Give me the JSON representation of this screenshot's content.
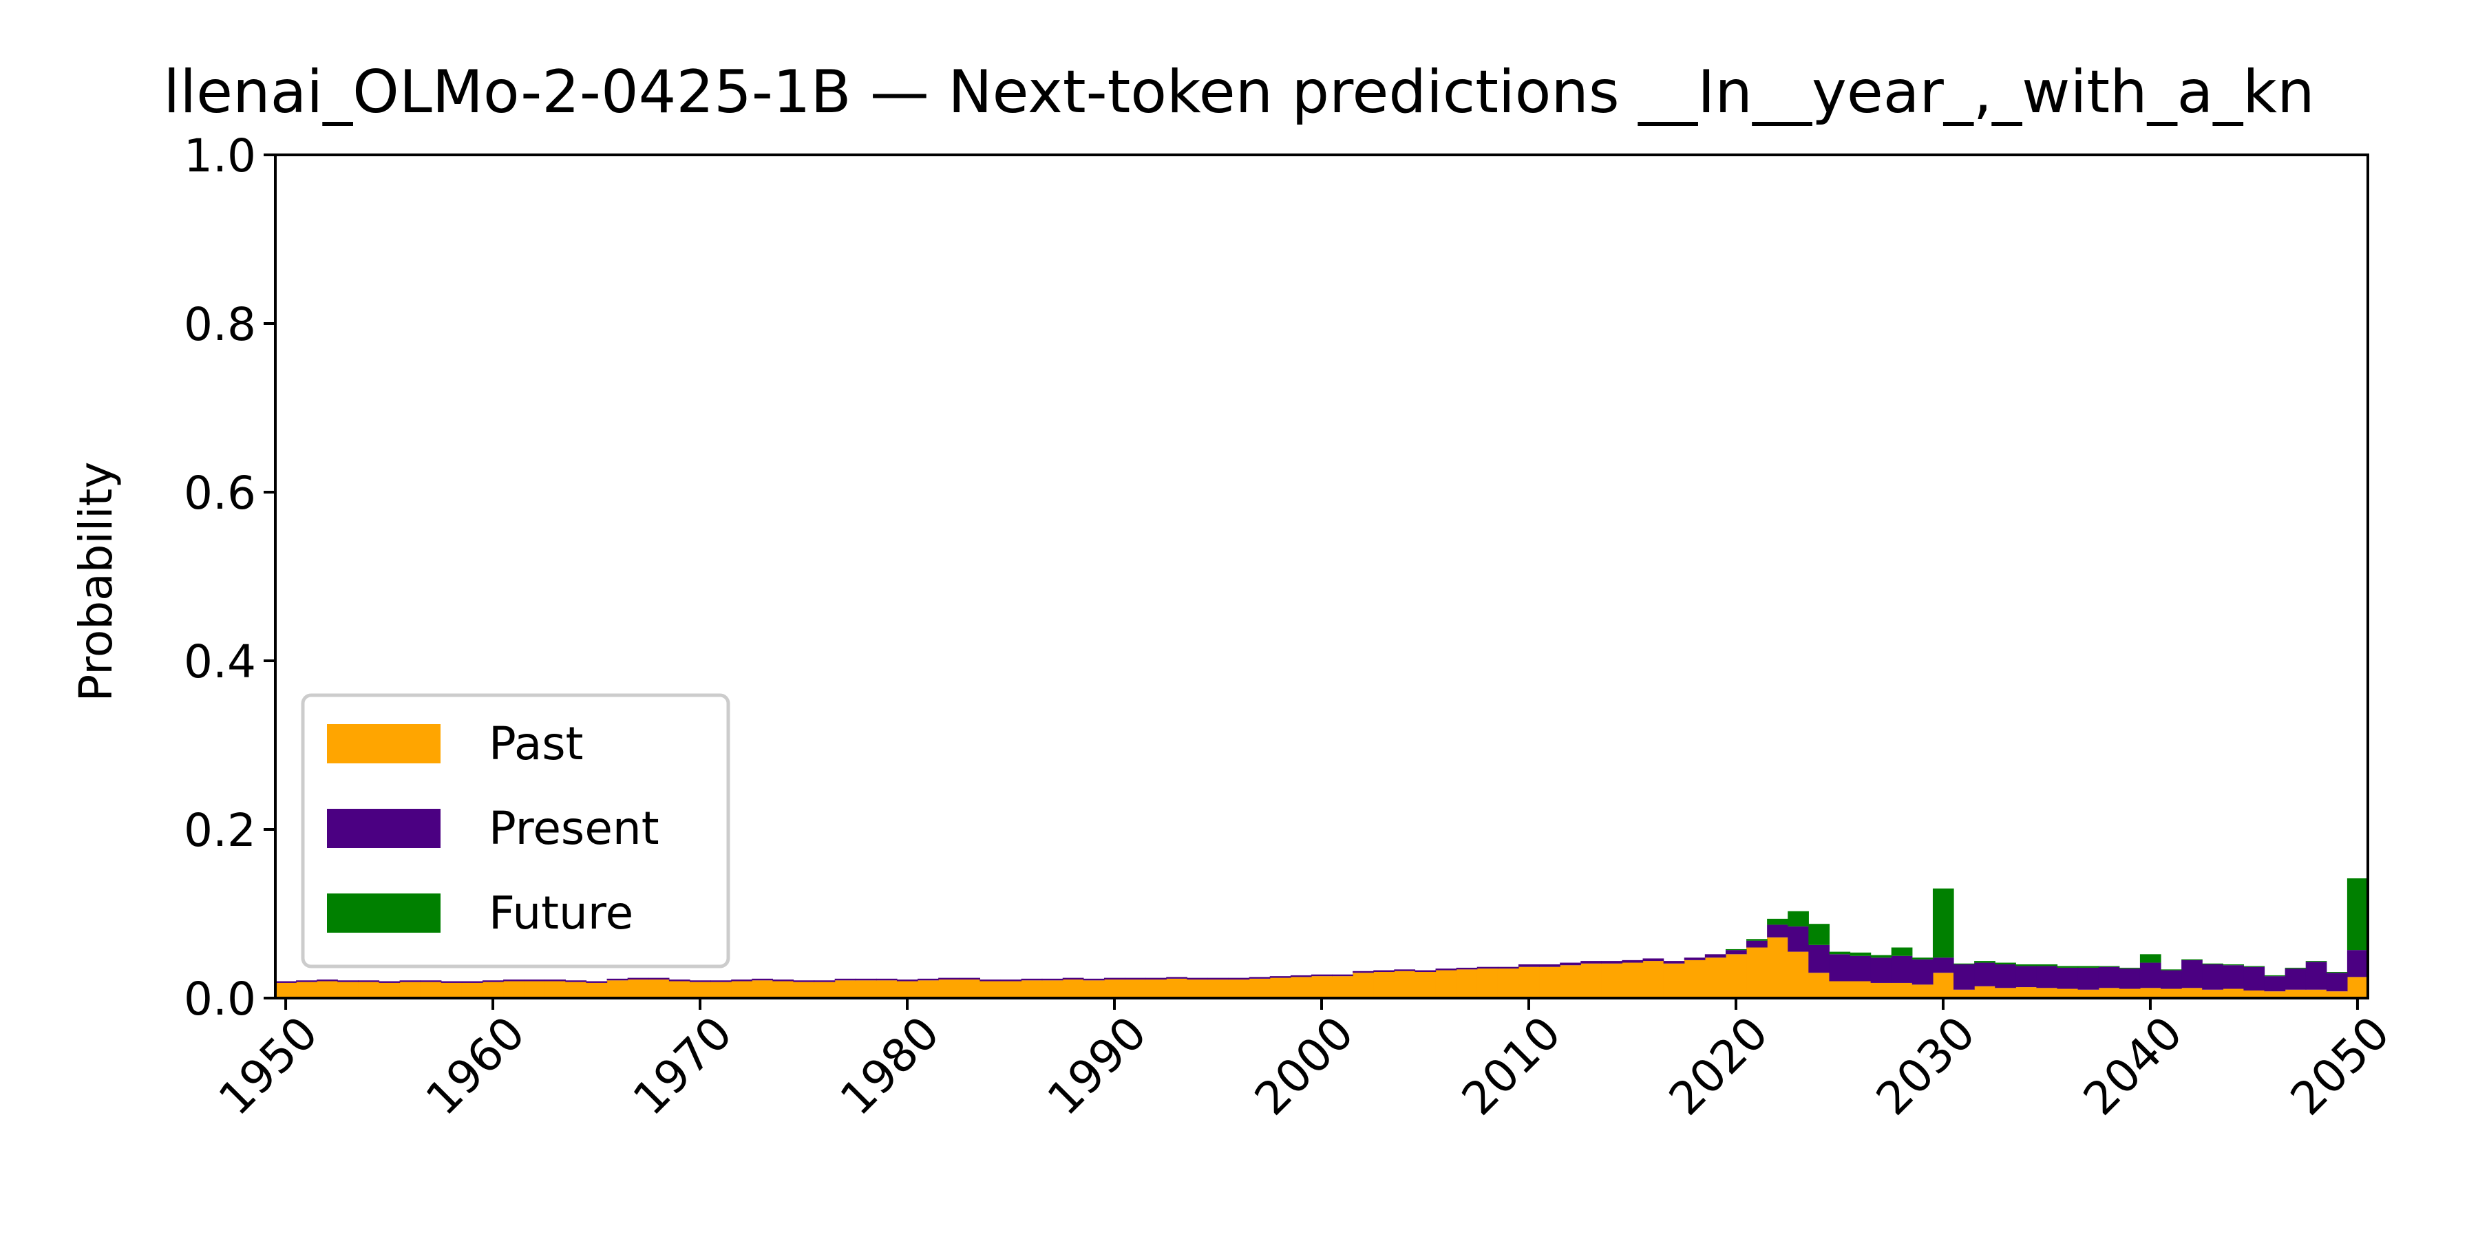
{
  "chart_data": {
    "type": "bar",
    "stacked": true,
    "title": "llenai_OLMo-2-0425-1B — Next-token predictions __In__year_,_with_a_kn",
    "xlabel": "",
    "ylabel": "Probability",
    "xlim": [
      1949.5,
      2050.5
    ],
    "ylim": [
      0,
      1.0
    ],
    "xticks": [
      1950,
      1960,
      1970,
      1980,
      1990,
      2000,
      2010,
      2020,
      2030,
      2040,
      2050
    ],
    "yticks": [
      0.0,
      0.2,
      0.4,
      0.6,
      0.8,
      1.0
    ],
    "grid": false,
    "legend_position": "lower-left",
    "colors": {
      "Past": "#FFA500",
      "Present": "#4B0082",
      "Future": "#008000"
    },
    "years": [
      1950,
      1951,
      1952,
      1953,
      1954,
      1955,
      1956,
      1957,
      1958,
      1959,
      1960,
      1961,
      1962,
      1963,
      1964,
      1965,
      1966,
      1967,
      1968,
      1969,
      1970,
      1971,
      1972,
      1973,
      1974,
      1975,
      1976,
      1977,
      1978,
      1979,
      1980,
      1981,
      1982,
      1983,
      1984,
      1985,
      1986,
      1987,
      1988,
      1989,
      1990,
      1991,
      1992,
      1993,
      1994,
      1995,
      1996,
      1997,
      1998,
      1999,
      2000,
      2001,
      2002,
      2003,
      2004,
      2005,
      2006,
      2007,
      2008,
      2009,
      2010,
      2011,
      2012,
      2013,
      2014,
      2015,
      2016,
      2017,
      2018,
      2019,
      2020,
      2021,
      2022,
      2023,
      2024,
      2025,
      2026,
      2027,
      2028,
      2029,
      2030,
      2031,
      2032,
      2033,
      2034,
      2035,
      2036,
      2037,
      2038,
      2039,
      2040,
      2041,
      2042,
      2043,
      2044,
      2045,
      2046,
      2047,
      2048,
      2049,
      2050
    ],
    "series": [
      {
        "name": "Past",
        "values": [
          0.018,
          0.019,
          0.02,
          0.019,
          0.019,
          0.018,
          0.019,
          0.019,
          0.018,
          0.018,
          0.019,
          0.02,
          0.02,
          0.02,
          0.019,
          0.018,
          0.021,
          0.022,
          0.022,
          0.02,
          0.019,
          0.019,
          0.02,
          0.021,
          0.02,
          0.019,
          0.019,
          0.021,
          0.021,
          0.021,
          0.02,
          0.021,
          0.022,
          0.022,
          0.02,
          0.02,
          0.021,
          0.021,
          0.022,
          0.021,
          0.022,
          0.022,
          0.022,
          0.023,
          0.022,
          0.022,
          0.022,
          0.023,
          0.024,
          0.025,
          0.026,
          0.026,
          0.03,
          0.031,
          0.032,
          0.031,
          0.033,
          0.034,
          0.035,
          0.035,
          0.037,
          0.037,
          0.039,
          0.041,
          0.041,
          0.042,
          0.044,
          0.041,
          0.045,
          0.048,
          0.052,
          0.06,
          0.072,
          0.055,
          0.03,
          0.02,
          0.02,
          0.018,
          0.018,
          0.016,
          0.03,
          0.01,
          0.014,
          0.012,
          0.013,
          0.012,
          0.011,
          0.01,
          0.012,
          0.011,
          0.012,
          0.011,
          0.012,
          0.01,
          0.011,
          0.009,
          0.008,
          0.01,
          0.01,
          0.008,
          0.025
        ]
      },
      {
        "name": "Present",
        "values": [
          0.002,
          0.002,
          0.002,
          0.002,
          0.002,
          0.002,
          0.002,
          0.002,
          0.002,
          0.002,
          0.002,
          0.002,
          0.002,
          0.002,
          0.002,
          0.002,
          0.002,
          0.002,
          0.002,
          0.002,
          0.002,
          0.002,
          0.002,
          0.002,
          0.002,
          0.002,
          0.002,
          0.002,
          0.002,
          0.002,
          0.002,
          0.002,
          0.002,
          0.002,
          0.002,
          0.002,
          0.002,
          0.002,
          0.002,
          0.002,
          0.002,
          0.002,
          0.002,
          0.002,
          0.002,
          0.002,
          0.002,
          0.002,
          0.002,
          0.002,
          0.002,
          0.002,
          0.002,
          0.002,
          0.002,
          0.002,
          0.002,
          0.002,
          0.002,
          0.002,
          0.003,
          0.003,
          0.003,
          0.003,
          0.003,
          0.003,
          0.003,
          0.003,
          0.003,
          0.004,
          0.005,
          0.008,
          0.015,
          0.03,
          0.033,
          0.032,
          0.03,
          0.03,
          0.032,
          0.03,
          0.018,
          0.03,
          0.028,
          0.028,
          0.025,
          0.026,
          0.025,
          0.026,
          0.025,
          0.024,
          0.03,
          0.022,
          0.033,
          0.03,
          0.028,
          0.028,
          0.018,
          0.025,
          0.033,
          0.022,
          0.032
        ]
      },
      {
        "name": "Future",
        "values": [
          0,
          0,
          0,
          0,
          0,
          0,
          0,
          0,
          0,
          0,
          0,
          0,
          0,
          0,
          0,
          0,
          0,
          0,
          0,
          0,
          0,
          0,
          0,
          0,
          0,
          0,
          0,
          0,
          0,
          0,
          0,
          0,
          0,
          0,
          0,
          0,
          0,
          0,
          0,
          0,
          0,
          0,
          0,
          0,
          0,
          0,
          0,
          0,
          0,
          0,
          0,
          0,
          0,
          0,
          0,
          0,
          0,
          0,
          0,
          0,
          0,
          0,
          0,
          0,
          0,
          0,
          0,
          0,
          0,
          0,
          0.001,
          0.002,
          0.007,
          0.018,
          0.025,
          0.003,
          0.004,
          0.003,
          0.01,
          0.002,
          0.082,
          0.001,
          0.002,
          0.002,
          0.002,
          0.002,
          0.002,
          0.002,
          0.001,
          0.001,
          0.01,
          0.001,
          0.001,
          0.001,
          0.001,
          0.001,
          0.001,
          0.001,
          0.001,
          0.001,
          0.085
        ]
      }
    ]
  }
}
